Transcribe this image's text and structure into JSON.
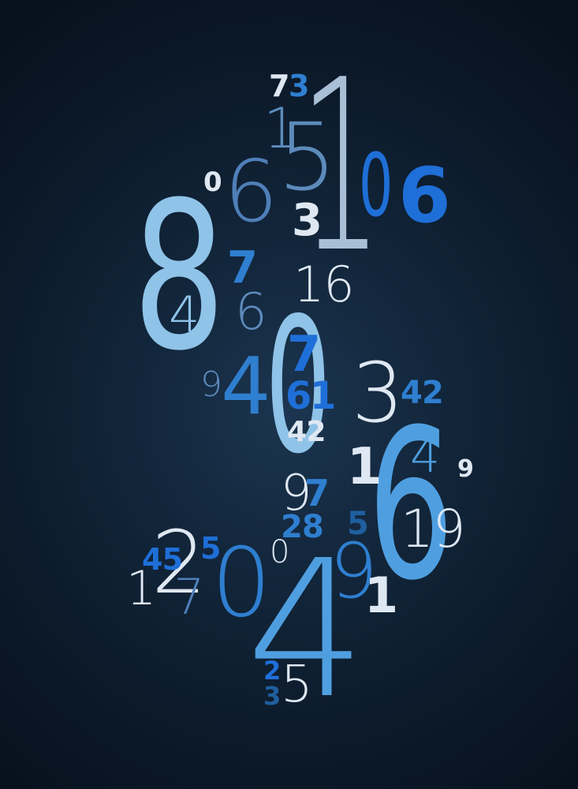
{
  "palette": {
    "background_center": "#1c3550",
    "background_edge": "#08121f",
    "light_blue": "#8fc3e8",
    "sky_blue": "#4f9fe0",
    "mid_blue": "#2f7fd0",
    "royal_blue": "#1f6fd8",
    "steel_blue": "#5d8bbb",
    "pale": "#dfe8f2",
    "grey_blue": "#a9bfd6"
  },
  "digits": [
    {
      "id": "d-7-top",
      "text": "7"
    },
    {
      "id": "d-3-top",
      "text": "3"
    },
    {
      "id": "d-1-tall",
      "text": "1"
    },
    {
      "id": "d-1-small",
      "text": "1"
    },
    {
      "id": "d-5-thin",
      "text": "5"
    },
    {
      "id": "d-0-right",
      "text": "0"
    },
    {
      "id": "d-6-right-bold",
      "text": "6"
    },
    {
      "id": "d-0-small",
      "text": "0"
    },
    {
      "id": "d-6-thin",
      "text": "6"
    },
    {
      "id": "d-3-white",
      "text": "3"
    },
    {
      "id": "d-8-big",
      "text": "8"
    },
    {
      "id": "d-4-in-8",
      "text": "4"
    },
    {
      "id": "d-7-blue",
      "text": "7"
    },
    {
      "id": "d-6-steel",
      "text": "6"
    },
    {
      "id": "d-16",
      "text": "16"
    },
    {
      "id": "d-0-big",
      "text": "0"
    },
    {
      "id": "d-7-in-0",
      "text": "7"
    },
    {
      "id": "d-61-in-0",
      "text": "61"
    },
    {
      "id": "d-42-in-0",
      "text": "42"
    },
    {
      "id": "d-9-left",
      "text": "9"
    },
    {
      "id": "d-4-blue",
      "text": "4"
    },
    {
      "id": "d-3-thin-right",
      "text": "3"
    },
    {
      "id": "d-42-right",
      "text": "42"
    },
    {
      "id": "d-6-big",
      "text": "6"
    },
    {
      "id": "d-4-in-6",
      "text": "4"
    },
    {
      "id": "d-19-in-6",
      "text": "19"
    },
    {
      "id": "d-1-white-mid",
      "text": "1"
    },
    {
      "id": "d-9-small-right",
      "text": "9"
    },
    {
      "id": "d-9-white",
      "text": "9"
    },
    {
      "id": "d-7-under-9",
      "text": "7"
    },
    {
      "id": "d-28",
      "text": "28"
    },
    {
      "id": "d-5-teal",
      "text": "5"
    },
    {
      "id": "d-2-white",
      "text": "2"
    },
    {
      "id": "d-45",
      "text": "45"
    },
    {
      "id": "d-5-teal-left",
      "text": "5"
    },
    {
      "id": "d-1-left",
      "text": "1"
    },
    {
      "id": "d-7-thin-low",
      "text": "7"
    },
    {
      "id": "d-0-low",
      "text": "0"
    },
    {
      "id": "d-0-white-small",
      "text": "0"
    },
    {
      "id": "d-4-big",
      "text": "4"
    },
    {
      "id": "d-9-thin-low",
      "text": "9"
    },
    {
      "id": "d-1-white-low",
      "text": "1"
    },
    {
      "id": "d-2-bottom",
      "text": "2"
    },
    {
      "id": "d-3-bottom",
      "text": "3"
    },
    {
      "id": "d-5-bottom",
      "text": "5"
    }
  ]
}
